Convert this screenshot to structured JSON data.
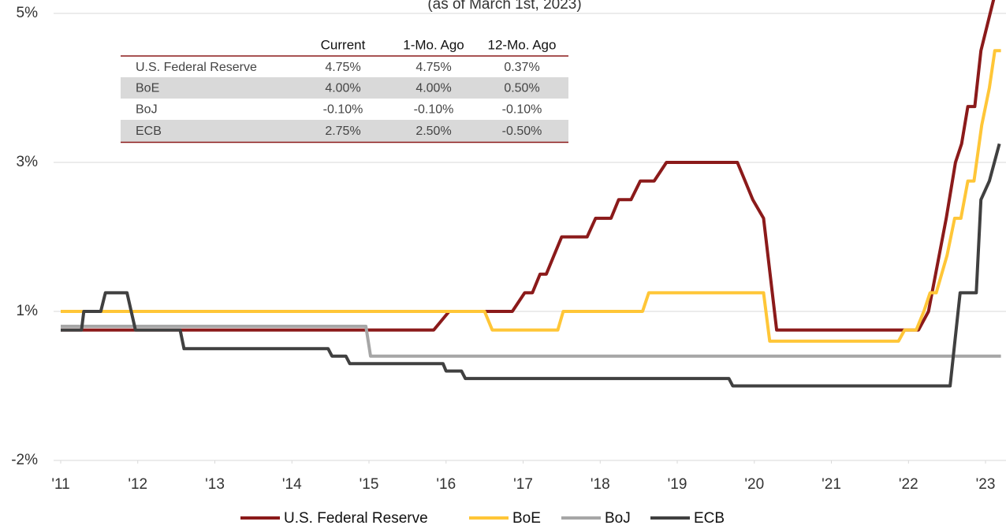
{
  "chart_data": {
    "type": "line",
    "subtitle": "(as of March 1st, 2023)",
    "xlim": [
      2011,
      2023.2
    ],
    "xticks": [
      {
        "value": 2011,
        "label": "'11"
      },
      {
        "value": 2012,
        "label": "'12"
      },
      {
        "value": 2013,
        "label": "'13"
      },
      {
        "value": 2014,
        "label": "'14"
      },
      {
        "value": 2015,
        "label": "'15"
      },
      {
        "value": 2016,
        "label": "'16"
      },
      {
        "value": 2017,
        "label": "'17"
      },
      {
        "value": 2018,
        "label": "'18"
      },
      {
        "value": 2019,
        "label": "'19"
      },
      {
        "value": 2020,
        "label": "'20"
      },
      {
        "value": 2021,
        "label": "'21"
      },
      {
        "value": 2022,
        "label": "'22"
      },
      {
        "value": 2023,
        "label": "'23"
      }
    ],
    "ylim": [
      -1.5,
      4.68
    ],
    "yticks": [
      {
        "value": -1.5,
        "label": "-2%"
      },
      {
        "value": 0.5,
        "label": "1%"
      },
      {
        "value": 2.5,
        "label": "3%"
      },
      {
        "value": 4.5,
        "label": "5%"
      }
    ],
    "grid": true,
    "legend": "bottom",
    "series": [
      {
        "name": "U.S. Federal Reserve",
        "color": "#8b1a1a",
        "x": [
          2011.0,
          2015.84,
          2016.04,
          2016.86,
          2017.02,
          2017.12,
          2017.22,
          2017.3,
          2017.4,
          2017.5,
          2017.83,
          2017.94,
          2018.14,
          2018.24,
          2018.4,
          2018.52,
          2018.7,
          2018.86,
          2019.78,
          2019.88,
          2019.98,
          2020.12,
          2020.29,
          2022.13,
          2022.26,
          2022.49,
          2022.61,
          2022.69,
          2022.77,
          2022.86,
          2022.94,
          2023.06,
          2023.12
        ],
        "values": [
          0.25,
          0.25,
          0.5,
          0.5,
          0.75,
          0.75,
          1.0,
          1.0,
          1.25,
          1.5,
          1.5,
          1.75,
          1.75,
          2.0,
          2.0,
          2.25,
          2.25,
          2.5,
          2.5,
          2.25,
          2.0,
          1.75,
          0.25,
          0.25,
          0.5,
          1.75,
          2.5,
          2.75,
          3.25,
          3.25,
          4.0,
          4.5,
          4.75
        ]
      },
      {
        "name": "BoE",
        "color": "#ffc637",
        "x": [
          2011.0,
          2016.5,
          2016.6,
          2017.45,
          2017.52,
          2018.55,
          2018.63,
          2020.12,
          2020.2,
          2021.87,
          2021.95,
          2022.1,
          2022.2,
          2022.28,
          2022.36,
          2022.5,
          2022.6,
          2022.68,
          2022.77,
          2022.85,
          2022.95,
          2023.05,
          2023.12,
          2023.2
        ],
        "values": [
          0.5,
          0.5,
          0.25,
          0.25,
          0.5,
          0.5,
          0.75,
          0.75,
          0.1,
          0.1,
          0.25,
          0.25,
          0.5,
          0.75,
          0.75,
          1.25,
          1.75,
          1.75,
          2.25,
          2.25,
          3.0,
          3.5,
          4.0,
          4.0
        ]
      },
      {
        "name": "BoJ",
        "color": "#a6a6a6",
        "x": [
          2011.0,
          2014.96,
          2015.02,
          2023.2
        ],
        "values": [
          0.3,
          0.3,
          -0.1,
          -0.1
        ]
      },
      {
        "name": "ECB",
        "color": "#404040",
        "x": [
          2011.0,
          2011.27,
          2011.3,
          2011.52,
          2011.58,
          2011.86,
          2011.97,
          2012.55,
          2012.6,
          2014.47,
          2014.52,
          2014.7,
          2014.75,
          2015.96,
          2016.0,
          2016.2,
          2016.25,
          2019.67,
          2019.72,
          2022.54,
          2022.67,
          2022.88,
          2022.94,
          2023.05,
          2023.18
        ],
        "values": [
          0.25,
          0.25,
          0.5,
          0.5,
          0.75,
          0.75,
          0.25,
          0.25,
          0.0,
          0.0,
          -0.1,
          -0.1,
          -0.2,
          -0.2,
          -0.3,
          -0.3,
          -0.4,
          -0.4,
          -0.5,
          -0.5,
          0.75,
          0.75,
          2.0,
          2.25,
          2.75
        ]
      }
    ]
  },
  "table": {
    "columns": [
      "Current",
      "1-Mo. Ago",
      "12-Mo. Ago"
    ],
    "rows": [
      [
        "U.S. Federal Reserve",
        "4.75%",
        "4.75%",
        "0.37%"
      ],
      [
        "BoE",
        "4.00%",
        "4.00%",
        "0.50%"
      ],
      [
        "BoJ",
        "-0.10%",
        "-0.10%",
        "-0.10%"
      ],
      [
        "ECB",
        "2.75%",
        "2.50%",
        "-0.50%"
      ]
    ]
  }
}
